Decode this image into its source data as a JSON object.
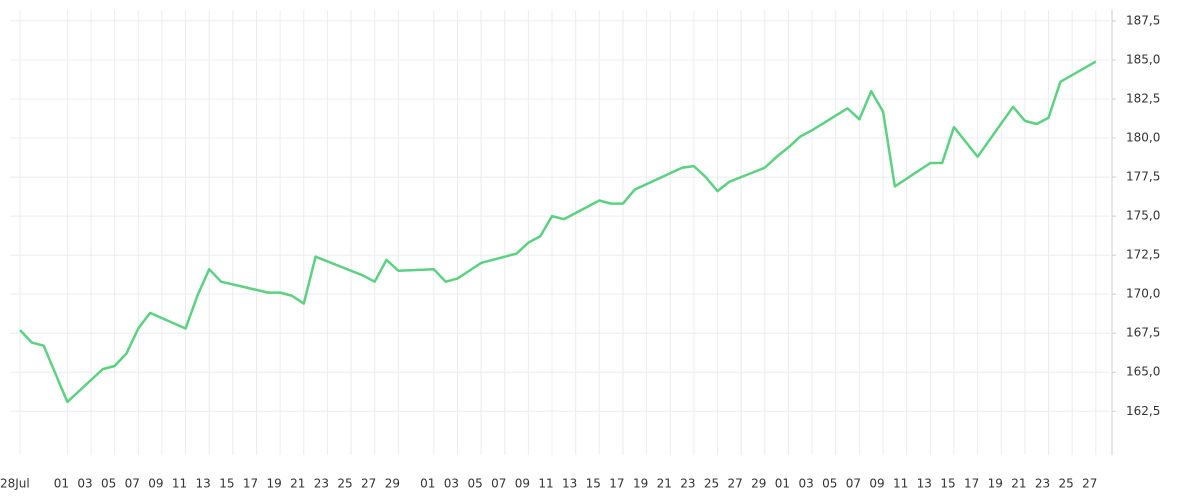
{
  "chart_data": {
    "type": "line",
    "x": [
      0,
      1,
      2,
      3,
      4,
      7,
      8,
      9,
      10,
      11,
      14,
      15,
      16,
      17,
      21,
      22,
      23,
      24,
      25,
      28,
      29,
      30,
      31,
      32,
      35,
      36,
      37,
      38,
      39,
      42,
      43,
      44,
      45,
      46,
      49,
      50,
      51,
      52,
      56,
      57,
      58,
      59,
      60,
      63,
      64,
      65,
      66,
      67,
      70,
      71,
      72,
      73,
      74,
      77,
      78,
      79,
      81,
      84,
      85,
      86,
      87,
      88,
      91
    ],
    "series": [
      {
        "color": "#5cd182",
        "values": [
          167.7,
          166.9,
          166.7,
          164.9,
          163.1,
          165.2,
          165.4,
          166.2,
          167.8,
          168.8,
          167.8,
          169.9,
          171.6,
          170.8,
          170.1,
          170.1,
          169.9,
          169.4,
          172.4,
          171.5,
          171.2,
          170.8,
          172.2,
          171.5,
          171.6,
          170.8,
          171.0,
          171.5,
          172.0,
          172.6,
          173.3,
          173.7,
          175.0,
          174.8,
          176.0,
          175.8,
          175.8,
          176.7,
          178.1,
          178.2,
          177.5,
          176.6,
          177.2,
          178.1,
          178.8,
          179.4,
          180.1,
          180.5,
          181.9,
          181.2,
          183.0,
          181.7,
          176.9,
          178.4,
          178.4,
          180.7,
          178.8,
          182.0,
          181.1,
          180.9,
          181.3,
          183.6,
          184.9
        ]
      }
    ],
    "xlim": [
      -0.85,
      92.2
    ],
    "xticks": [
      {
        "value": 0,
        "label": "28Jul"
      },
      {
        "value": 4,
        "label": "01"
      },
      {
        "value": 6,
        "label": "03"
      },
      {
        "value": 8,
        "label": "05"
      },
      {
        "value": 10,
        "label": "07"
      },
      {
        "value": 12,
        "label": "09"
      },
      {
        "value": 14,
        "label": "11"
      },
      {
        "value": 16,
        "label": "13"
      },
      {
        "value": 18,
        "label": "15"
      },
      {
        "value": 20,
        "label": "17"
      },
      {
        "value": 22,
        "label": "19"
      },
      {
        "value": 24,
        "label": "21"
      },
      {
        "value": 26,
        "label": "23"
      },
      {
        "value": 28,
        "label": "25"
      },
      {
        "value": 30,
        "label": "27"
      },
      {
        "value": 32,
        "label": "29"
      },
      {
        "value": 35,
        "label": "01"
      },
      {
        "value": 37,
        "label": "03"
      },
      {
        "value": 39,
        "label": "05"
      },
      {
        "value": 41,
        "label": "07"
      },
      {
        "value": 43,
        "label": "09"
      },
      {
        "value": 45,
        "label": "11"
      },
      {
        "value": 47,
        "label": "13"
      },
      {
        "value": 49,
        "label": "15"
      },
      {
        "value": 51,
        "label": "17"
      },
      {
        "value": 53,
        "label": "19"
      },
      {
        "value": 55,
        "label": "21"
      },
      {
        "value": 57,
        "label": "23"
      },
      {
        "value": 59,
        "label": "25"
      },
      {
        "value": 61,
        "label": "27"
      },
      {
        "value": 63,
        "label": "29"
      },
      {
        "value": 65,
        "label": "01"
      },
      {
        "value": 67,
        "label": "03"
      },
      {
        "value": 69,
        "label": "05"
      },
      {
        "value": 71,
        "label": "07"
      },
      {
        "value": 73,
        "label": "09"
      },
      {
        "value": 75,
        "label": "11"
      },
      {
        "value": 77,
        "label": "13"
      },
      {
        "value": 79,
        "label": "15"
      },
      {
        "value": 81,
        "label": "17"
      },
      {
        "value": 83,
        "label": "19"
      },
      {
        "value": 85,
        "label": "21"
      },
      {
        "value": 87,
        "label": "23"
      },
      {
        "value": 89,
        "label": "25"
      },
      {
        "value": 91,
        "label": "27"
      }
    ],
    "ylim": [
      159.7,
      188.2
    ],
    "yticks": [
      {
        "value": 162.5,
        "label": "162,5"
      },
      {
        "value": 165,
        "label": "165,0"
      },
      {
        "value": 167.5,
        "label": "167,5"
      },
      {
        "value": 170,
        "label": "170,0"
      },
      {
        "value": 172.5,
        "label": "172,5"
      },
      {
        "value": 175,
        "label": "175,0"
      },
      {
        "value": 177.5,
        "label": "177,5"
      },
      {
        "value": 180,
        "label": "180,0"
      },
      {
        "value": 182.5,
        "label": "182,5"
      },
      {
        "value": 185,
        "label": "185,0"
      },
      {
        "value": 187.5,
        "label": "187,5"
      }
    ],
    "grid": true
  }
}
